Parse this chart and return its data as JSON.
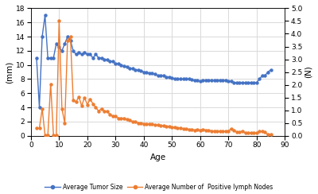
{
  "xlabel": "Age",
  "ylabel_left": "(mm)",
  "ylabel_right": "(N)",
  "ylim_left": [
    0,
    18
  ],
  "ylim_right": [
    0,
    5
  ],
  "xlim": [
    0,
    90
  ],
  "xticks": [
    0,
    10,
    20,
    30,
    40,
    50,
    60,
    70,
    80,
    90
  ],
  "yticks_left": [
    0,
    2,
    4,
    6,
    8,
    10,
    12,
    14,
    16,
    18
  ],
  "yticks_right": [
    0,
    0.5,
    1.0,
    1.5,
    2.0,
    2.5,
    3.0,
    3.5,
    4.0,
    4.5,
    5.0
  ],
  "blue_color": "#4472C4",
  "orange_color": "#ED7D31",
  "legend_blue": "Average Tumor Size",
  "legend_orange": "Average Number of  Positive lymph Nodes",
  "background_color": "#FFFFFF",
  "grid_color": "#D9D9D9",
  "blue_x": [
    2,
    3,
    4,
    5,
    6,
    7,
    8,
    9,
    10,
    11,
    12,
    13,
    14,
    15,
    16,
    17,
    18,
    19,
    20,
    21,
    22,
    23,
    24,
    25,
    26,
    27,
    28,
    29,
    30,
    31,
    32,
    33,
    34,
    35,
    36,
    37,
    38,
    39,
    40,
    41,
    42,
    43,
    44,
    45,
    46,
    47,
    48,
    49,
    50,
    51,
    52,
    53,
    54,
    55,
    56,
    57,
    58,
    59,
    60,
    61,
    62,
    63,
    64,
    65,
    66,
    67,
    68,
    69,
    70,
    71,
    72,
    73,
    74,
    75,
    76,
    77,
    78,
    79,
    80,
    81,
    82,
    83,
    84,
    85
  ],
  "blue_y": [
    11.0,
    4.0,
    14.0,
    17.0,
    11.0,
    11.0,
    11.0,
    13.0,
    12.5,
    12.0,
    13.0,
    14.0,
    13.5,
    12.0,
    11.5,
    11.8,
    11.5,
    11.8,
    11.5,
    11.5,
    11.0,
    11.5,
    11.0,
    11.0,
    10.8,
    10.7,
    10.5,
    10.5,
    10.2,
    10.2,
    10.0,
    9.8,
    9.7,
    9.5,
    9.5,
    9.3,
    9.3,
    9.2,
    9.0,
    9.0,
    8.8,
    8.8,
    8.7,
    8.5,
    8.5,
    8.5,
    8.3,
    8.3,
    8.2,
    8.0,
    8.0,
    8.0,
    8.0,
    8.0,
    8.0,
    7.9,
    7.8,
    7.8,
    7.7,
    7.8,
    7.8,
    7.8,
    7.8,
    7.8,
    7.8,
    7.8,
    7.8,
    7.8,
    7.7,
    7.7,
    7.5,
    7.5,
    7.5,
    7.5,
    7.5,
    7.5,
    7.5,
    7.5,
    7.5,
    8.0,
    8.5,
    8.5,
    9.0,
    9.3
  ],
  "orange_x": [
    2,
    3,
    4,
    5,
    6,
    7,
    8,
    9,
    10,
    11,
    12,
    13,
    14,
    15,
    16,
    17,
    18,
    19,
    20,
    21,
    22,
    23,
    24,
    25,
    26,
    27,
    28,
    29,
    30,
    31,
    32,
    33,
    34,
    35,
    36,
    37,
    38,
    39,
    40,
    41,
    42,
    43,
    44,
    45,
    46,
    47,
    48,
    49,
    50,
    51,
    52,
    53,
    54,
    55,
    56,
    57,
    58,
    59,
    60,
    61,
    62,
    63,
    64,
    65,
    66,
    67,
    68,
    69,
    70,
    71,
    72,
    73,
    74,
    75,
    76,
    77,
    78,
    79,
    80,
    81,
    82,
    83,
    84,
    85
  ],
  "orange_y": [
    0.29,
    0.29,
    1.06,
    0.03,
    0.01,
    2.03,
    0.03,
    0.03,
    4.5,
    1.06,
    0.5,
    3.75,
    3.89,
    1.39,
    1.33,
    1.53,
    1.17,
    1.5,
    1.22,
    1.44,
    1.25,
    1.11,
    0.97,
    1.06,
    0.97,
    0.97,
    0.83,
    0.78,
    0.78,
    0.69,
    0.69,
    0.69,
    0.64,
    0.61,
    0.56,
    0.56,
    0.5,
    0.5,
    0.47,
    0.47,
    0.47,
    0.47,
    0.42,
    0.42,
    0.39,
    0.39,
    0.36,
    0.36,
    0.33,
    0.33,
    0.31,
    0.31,
    0.28,
    0.28,
    0.25,
    0.25,
    0.22,
    0.25,
    0.22,
    0.25,
    0.22,
    0.22,
    0.19,
    0.19,
    0.19,
    0.17,
    0.17,
    0.17,
    0.19,
    0.28,
    0.22,
    0.14,
    0.14,
    0.19,
    0.11,
    0.11,
    0.11,
    0.11,
    0.11,
    0.17,
    0.17,
    0.14,
    0.04,
    0.06
  ]
}
